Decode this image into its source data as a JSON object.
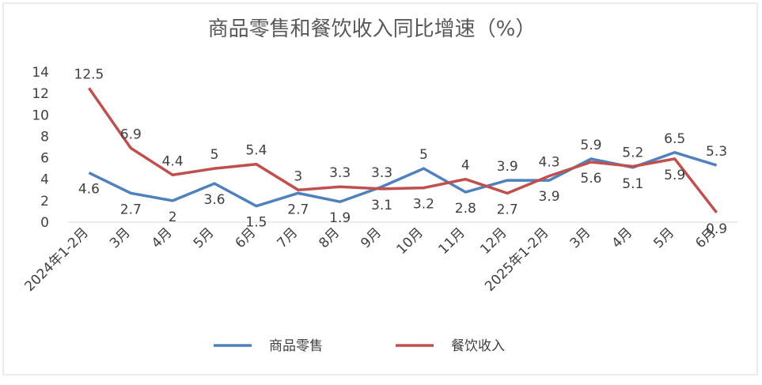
{
  "chart_data": {
    "type": "line",
    "title": "商品零售和餐饮收入同比增速（%）",
    "categories": [
      "2024年1-2月",
      "3月",
      "4月",
      "5月",
      "6月",
      "7月",
      "8月",
      "9月",
      "10月",
      "11月",
      "12月",
      "2025年1-2月",
      "3月",
      "4月",
      "5月",
      "6月"
    ],
    "series": [
      {
        "name": "商品零售",
        "color": "#4f81bd",
        "values": [
          4.6,
          2.7,
          2,
          3.6,
          1.5,
          2.7,
          1.9,
          3.3,
          5,
          2.8,
          3.9,
          3.9,
          5.9,
          5.1,
          6.5,
          5.3
        ]
      },
      {
        "name": "餐饮收入",
        "color": "#c0504d",
        "values": [
          12.5,
          6.9,
          4.4,
          5,
          5.4,
          3,
          3.3,
          3.1,
          3.2,
          4,
          2.7,
          4.3,
          5.6,
          5.2,
          5.9,
          0.9
        ]
      }
    ],
    "ylim": [
      0,
      14
    ],
    "yticks": [
      0,
      2,
      4,
      6,
      8,
      10,
      12,
      14
    ],
    "legend": "bottom"
  }
}
